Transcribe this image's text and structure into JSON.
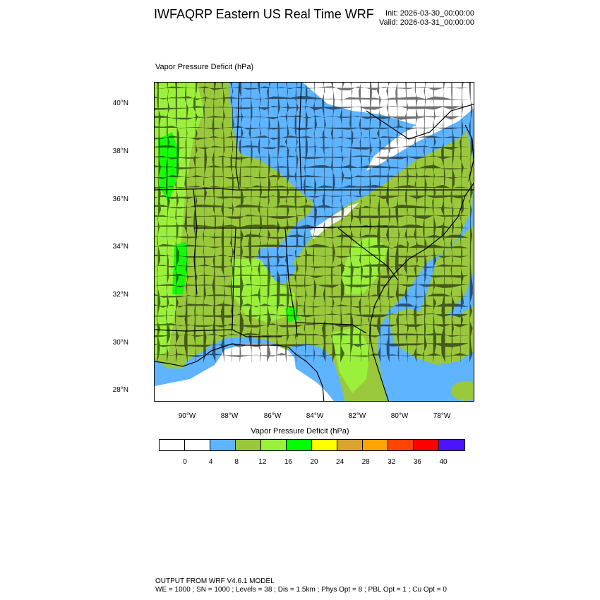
{
  "header": {
    "title": "IWFAQRP Eastern US Real Time WRF",
    "init": "Init: 2026-03-30_00:00:00",
    "valid": "Valid: 2026-03-31_00:00:00"
  },
  "field": {
    "title": "Vapor Pressure Deficit   (hPa)"
  },
  "map": {
    "lat_labels": [
      "40°N",
      "38°N",
      "36°N",
      "34°N",
      "32°N",
      "30°N",
      "28°N"
    ],
    "lon_labels": [
      "90°W",
      "88°W",
      "86°W",
      "84°W",
      "82°W",
      "80°W",
      "78°W"
    ]
  },
  "colorbar": {
    "title": "Vapor Pressure Deficit  (hPa)",
    "colors": [
      "#ffffff",
      "#ffffff",
      "#5fb4ff",
      "#9ac83c",
      "#9bf03c",
      "#00ff00",
      "#ffff00",
      "#d7a52d",
      "#ffa500",
      "#ff4500",
      "#ff0000",
      "#4b14ff"
    ],
    "labels": [
      "0",
      "4",
      "8",
      "12",
      "16",
      "20",
      "24",
      "28",
      "32",
      "36",
      "40"
    ]
  },
  "footer": {
    "line1": "OUTPUT FROM WRF V4.6.1 MODEL",
    "line2": "WE = 1000 ; SN = 1000 ; Levels = 38 ; Dis = 1.5km ; Phys Opt = 8 ; PBL Opt = 1 ; Cu Opt = 0"
  }
}
